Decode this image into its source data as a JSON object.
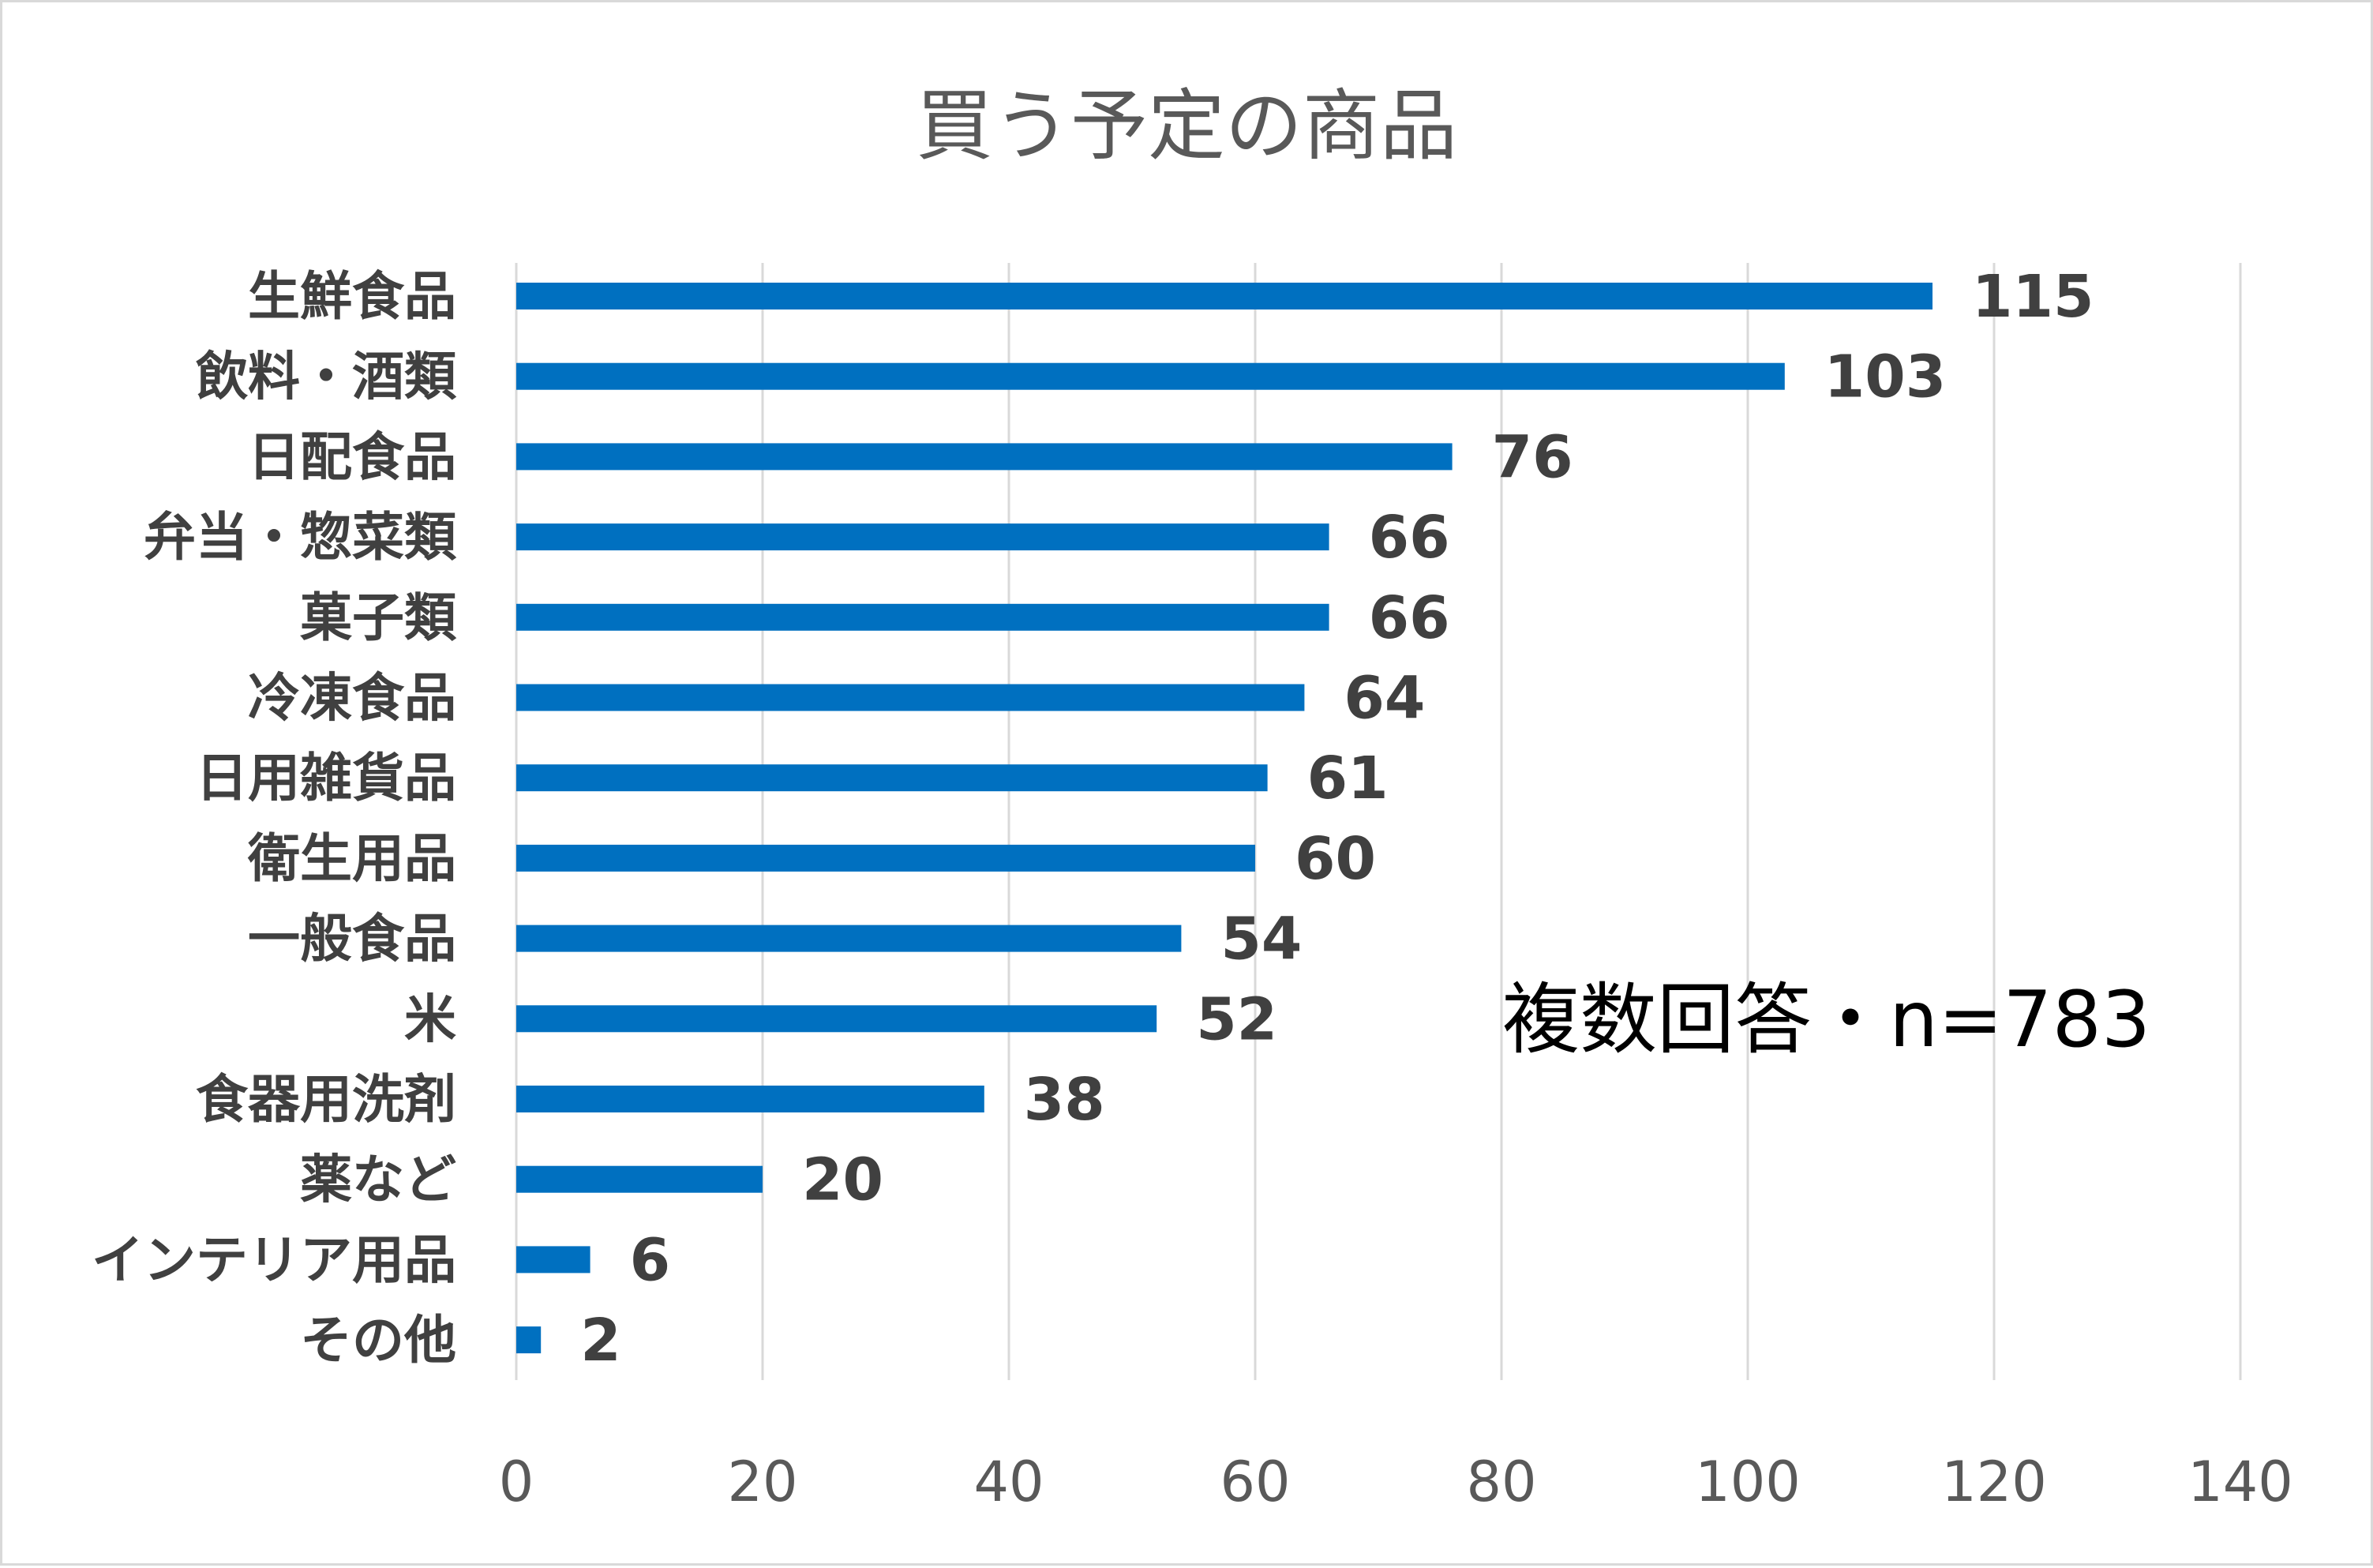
{
  "chart_data": {
    "type": "bar",
    "orientation": "horizontal",
    "title": "買う予定の商品",
    "categories": [
      "生鮮食品",
      "飲料・酒類",
      "日配食品",
      "弁当・惣菜類",
      "菓子類",
      "冷凍食品",
      "日用雑貨品",
      "衛生用品",
      "一般食品",
      "米",
      "食器用洗剤",
      "薬など",
      "インテリア用品",
      "その他"
    ],
    "values": [
      115,
      103,
      76,
      66,
      66,
      64,
      61,
      60,
      54,
      52,
      38,
      20,
      6,
      2
    ],
    "xlim": [
      0,
      140
    ],
    "xticks": [
      0,
      20,
      40,
      60,
      80,
      100,
      120,
      140
    ],
    "xlabel": "",
    "ylabel": "",
    "grid": true,
    "legend": "none",
    "data_labels": true,
    "bar_color": "#0070c0",
    "annotation": "複数回答・n=783"
  }
}
